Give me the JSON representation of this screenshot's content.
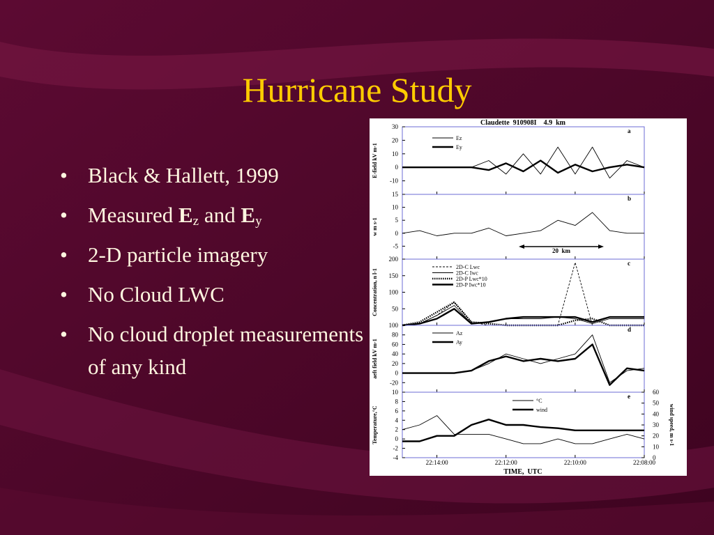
{
  "slide": {
    "title": "Hurricane Study",
    "bullets": [
      "Black & Hallett, 1999",
      [
        "Measured ",
        "E",
        "z",
        " and ",
        "E",
        "y"
      ],
      "2-D particle imagery",
      "No Cloud LWC",
      "No cloud droplet measurements of any kind"
    ]
  },
  "chart_data": [
    {
      "type": "line",
      "title": "Claudette  910908I    4.9  km",
      "panel": "a",
      "ylabel": "E-field  kV  m-1",
      "x": [
        15,
        14.5,
        14,
        13.5,
        13,
        12.5,
        12,
        11.5,
        11,
        10.5,
        10,
        9.5,
        9,
        8.5,
        8
      ],
      "xlim": [
        15,
        8
      ],
      "xticks": [
        {
          "value": 14,
          "label": "22:14:00"
        },
        {
          "value": 12,
          "label": "22:12:00"
        },
        {
          "value": 10,
          "label": "22:10:00"
        },
        {
          "value": 8,
          "label": "22:08:00"
        }
      ],
      "ylim": [
        -20,
        30
      ],
      "yticks": [
        -10,
        0,
        10,
        20,
        30
      ],
      "series": [
        {
          "name": "Ez",
          "color": "#000000",
          "width": "thin",
          "style": "solid",
          "values": [
            0,
            0,
            0,
            0,
            0,
            5,
            -5,
            10,
            -5,
            15,
            -5,
            15,
            -8,
            5,
            0
          ]
        },
        {
          "name": "Ey",
          "color": "#000000",
          "width": "thick",
          "style": "solid",
          "values": [
            0,
            0,
            0,
            0,
            0,
            -2,
            3,
            -3,
            5,
            -4,
            2,
            -3,
            0,
            2,
            0
          ]
        }
      ]
    },
    {
      "type": "line",
      "panel": "b",
      "ylabel": "w  m  s-1",
      "annotation": "20  km",
      "x": [
        15,
        14.5,
        14,
        13.5,
        13,
        12.5,
        12,
        11.5,
        11,
        10.5,
        10,
        9.5,
        9,
        8.5,
        8
      ],
      "xlim": [
        15,
        8
      ],
      "xticks": [
        {
          "value": 14,
          "label": "22:14:00"
        },
        {
          "value": 12,
          "label": "22:12:00"
        },
        {
          "value": 10,
          "label": "22:10:00"
        },
        {
          "value": 8,
          "label": "22:08:00"
        }
      ],
      "ylim": [
        -10,
        15
      ],
      "yticks": [
        -5,
        0,
        5,
        10,
        15
      ],
      "series": [
        {
          "color": "#000000",
          "width": "thin",
          "style": "solid",
          "values": [
            0,
            1,
            -1,
            0,
            0,
            2,
            -1,
            0,
            1,
            5,
            3,
            8,
            1,
            0,
            0
          ]
        }
      ]
    },
    {
      "type": "line",
      "panel": "c",
      "ylabel": "Concentration,  n  l-1",
      "x": [
        15,
        14.5,
        14,
        13.5,
        13,
        12.5,
        12,
        11.5,
        11,
        10.5,
        10,
        9.5,
        9,
        8.5,
        8
      ],
      "xlim": [
        15,
        8
      ],
      "xticks": [
        {
          "value": 14,
          "label": "22:14:00"
        },
        {
          "value": 12,
          "label": "22:12:00"
        },
        {
          "value": 10,
          "label": "22:10:00"
        },
        {
          "value": 8,
          "label": "22:08:00"
        }
      ],
      "ylim": [
        0,
        200
      ],
      "yticks": [
        50,
        100,
        150,
        200
      ],
      "series": [
        {
          "name": "2D-C Lwc",
          "color": "#000000",
          "width": "thin",
          "style": "dashed",
          "values": [
            0,
            5,
            30,
            70,
            10,
            0,
            0,
            0,
            0,
            0,
            190,
            0,
            0,
            0,
            0
          ]
        },
        {
          "name": "2D-C Iwc",
          "color": "#000000",
          "width": "thin",
          "style": "solid",
          "values": [
            0,
            5,
            30,
            60,
            5,
            10,
            20,
            20,
            20,
            25,
            20,
            5,
            20,
            20,
            20
          ]
        },
        {
          "name": "2D-P Lwc*10",
          "color": "#000000",
          "width": "thick",
          "style": "dotted",
          "values": [
            0,
            10,
            40,
            70,
            10,
            5,
            0,
            0,
            0,
            0,
            15,
            20,
            0,
            0,
            0
          ]
        },
        {
          "name": "2D-P Iwc*10",
          "color": "#000000",
          "width": "thick",
          "style": "solid",
          "values": [
            0,
            5,
            20,
            50,
            5,
            10,
            20,
            25,
            25,
            25,
            25,
            10,
            25,
            25,
            25
          ]
        }
      ]
    },
    {
      "type": "line",
      "panel": "d",
      "ylabel": "aeft field  kV  m-1",
      "x": [
        15,
        14.5,
        14,
        13.5,
        13,
        12.5,
        12,
        11.5,
        11,
        10.5,
        10,
        9.5,
        9,
        8.5,
        8
      ],
      "xlim": [
        15,
        8
      ],
      "xticks": [
        {
          "value": 14,
          "label": "22:14:00"
        },
        {
          "value": 12,
          "label": "22:12:00"
        },
        {
          "value": 10,
          "label": "22:10:00"
        },
        {
          "value": 8,
          "label": "22:08:00"
        }
      ],
      "ylim": [
        -40,
        100
      ],
      "yticks": [
        -20,
        0,
        20,
        40,
        60,
        80,
        100
      ],
      "series": [
        {
          "name": "Az",
          "color": "#000000",
          "width": "thin",
          "style": "solid",
          "values": [
            0,
            0,
            0,
            0,
            5,
            20,
            40,
            30,
            20,
            30,
            40,
            80,
            -20,
            5,
            10
          ]
        },
        {
          "name": "Ay",
          "color": "#000000",
          "width": "thick",
          "style": "solid",
          "values": [
            0,
            0,
            0,
            0,
            5,
            25,
            35,
            25,
            30,
            25,
            30,
            60,
            -25,
            10,
            5
          ]
        }
      ]
    },
    {
      "type": "line",
      "panel": "e",
      "ylabel": "Temperature,°C",
      "y2label": "wind  speed,  m  s-1",
      "xlabel": "TIME,  UTC",
      "x": [
        15,
        14.5,
        14,
        13.5,
        13,
        12.5,
        12,
        11.5,
        11,
        10.5,
        10,
        9.5,
        9,
        8.5,
        8
      ],
      "xlim": [
        15,
        8
      ],
      "xticks": [
        {
          "value": 14,
          "label": "22:14:00"
        },
        {
          "value": 12,
          "label": "22:12:00"
        },
        {
          "value": 10,
          "label": "22:10:00"
        },
        {
          "value": 8,
          "label": "22:08:00"
        }
      ],
      "ylim": [
        -4,
        10
      ],
      "yticks": [
        -4,
        -2,
        0,
        2,
        4,
        6,
        8,
        10
      ],
      "y2lim": [
        0,
        60
      ],
      "y2ticks": [
        0,
        10,
        20,
        30,
        40,
        50,
        60
      ],
      "series": [
        {
          "name": "°C",
          "color": "#000000",
          "width": "thin",
          "style": "solid",
          "values": [
            2,
            3,
            5,
            1,
            1,
            1,
            0,
            -1,
            -1,
            0,
            -1,
            -1,
            0,
            1,
            0
          ]
        },
        {
          "name": "wind",
          "axis": "y2",
          "color": "#000000",
          "width": "thick",
          "style": "solid",
          "values": [
            15,
            15,
            20,
            20,
            30,
            35,
            30,
            30,
            28,
            27,
            25,
            25,
            25,
            25,
            25
          ]
        }
      ]
    }
  ]
}
